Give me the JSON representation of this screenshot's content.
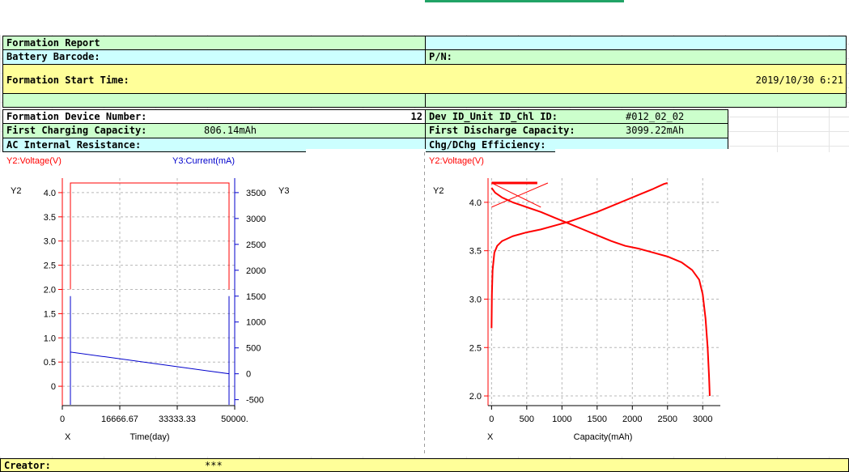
{
  "report": {
    "title": "Formation Report",
    "battery_barcode_label": "Battery Barcode:",
    "pn_label": "P/N:",
    "start_time_label": "Formation Start Time:",
    "start_time_value": "2019/10/30 6:21",
    "device_number_label": "Formation Device Number:",
    "device_number_value": "12",
    "dev_id_label": "Dev ID_Unit ID_Chl ID:",
    "dev_id_value": "#012_02_02",
    "first_charge_label": "First Charging Capacity:",
    "first_charge_value": "806.14mAh",
    "first_discharge_label": "First Discharge Capacity:",
    "first_discharge_value": "3099.22mAh",
    "ac_resistance_label": "AC Internal Resistance:",
    "efficiency_label": "Chg/DChg Efficiency:",
    "creator_label": "Creator:",
    "creator_value": "***"
  },
  "colors": {
    "voltage": "#ff0000",
    "current": "#0000cc",
    "cell_green": "#ccffcc",
    "cell_cyan": "#ccffff",
    "cell_yellow": "#ffff99"
  },
  "chart_data": [
    {
      "type": "line",
      "legend_left": "Y2:Voltage(V)",
      "legend_right": "Y3:Current(mA)",
      "y_axis_name": "Y2",
      "y2_axis_name": "Y3",
      "x_axis_name": "X",
      "xlabel": "Time(day)",
      "xlim": [
        0,
        50000
      ],
      "x_ticks": [
        "0",
        "16666.67",
        "33333.33",
        "50000."
      ],
      "x_tick_values": [
        0,
        16666.67,
        33333.33,
        50000
      ],
      "ylim": [
        -0.4,
        4.3
      ],
      "y_ticks": [
        0,
        0.5,
        1.0,
        1.5,
        2.0,
        2.5,
        3.0,
        3.5,
        4.0
      ],
      "y_tick_labels": [
        "0",
        "0.5",
        "1.0",
        "1.5",
        "2.0",
        "2.5",
        "3.0",
        "3.5",
        "4.0"
      ],
      "y2lim": [
        -615,
        3780
      ],
      "y2_ticks": [
        -500,
        0,
        500,
        1000,
        1500,
        2000,
        2500,
        3000,
        3500
      ],
      "y2_tick_labels": [
        "-500",
        "0",
        "500",
        "1000",
        "1500",
        "2000",
        "2500",
        "3000",
        "3500"
      ],
      "grid": true,
      "series": [
        {
          "axis": "y",
          "color": "#ff0000",
          "x": [
            0,
            0,
            0,
            50000,
            50000,
            50000
          ],
          "y": [
            2.0,
            4.2,
            4.2,
            4.2,
            4.2,
            2.0
          ]
        },
        {
          "axis": "y2",
          "color": "#0000cc",
          "x": [
            0,
            0,
            0,
            50000,
            50000,
            50000
          ],
          "y": [
            -600,
            1500,
            420,
            0,
            1500,
            -600
          ]
        }
      ]
    },
    {
      "type": "line",
      "legend_left": "Y2:Voltage(V)",
      "y_axis_name": "Y2",
      "x_axis_name": "X",
      "xlabel": "Capacity(mAh)",
      "xlim": [
        -50,
        3250
      ],
      "x_ticks": [
        0,
        500,
        1000,
        1500,
        2000,
        2500,
        3000
      ],
      "x_tick_labels": [
        "0",
        "500",
        "1000",
        "1500",
        "2000",
        "2500",
        "3000"
      ],
      "ylim": [
        1.9,
        4.25
      ],
      "y_ticks": [
        2.0,
        2.5,
        3.0,
        3.5,
        4.0
      ],
      "y_tick_labels": [
        "2.0",
        "2.5",
        "3.0",
        "3.5",
        "4.0"
      ],
      "grid": true,
      "series": [
        {
          "name_key": "charge",
          "color": "#ff0000",
          "width": 2,
          "x": [
            0,
            5,
            15,
            40,
            80,
            150,
            300,
            500,
            700,
            900,
            1100,
            1300,
            1500,
            1700,
            1900,
            2100,
            2300,
            2450,
            2500
          ],
          "y": [
            2.7,
            3.05,
            3.3,
            3.48,
            3.55,
            3.6,
            3.65,
            3.69,
            3.72,
            3.76,
            3.8,
            3.85,
            3.9,
            3.96,
            4.02,
            4.08,
            4.14,
            4.19,
            4.2
          ]
        },
        {
          "name_key": "discharge",
          "color": "#ff0000",
          "width": 2,
          "x": [
            0,
            50,
            150,
            300,
            500,
            700,
            900,
            1100,
            1300,
            1500,
            1700,
            1900,
            2100,
            2300,
            2500,
            2700,
            2850,
            2950,
            3000,
            3040,
            3070,
            3090,
            3100
          ],
          "y": [
            4.15,
            4.1,
            4.05,
            4.0,
            3.95,
            3.9,
            3.84,
            3.78,
            3.72,
            3.66,
            3.6,
            3.55,
            3.52,
            3.48,
            3.44,
            3.38,
            3.3,
            3.2,
            3.05,
            2.8,
            2.5,
            2.2,
            2.0
          ]
        },
        {
          "name_key": "cv-plateau",
          "color": "#ff0000",
          "width": 3,
          "x": [
            0,
            650
          ],
          "y": [
            4.2,
            4.2
          ]
        },
        {
          "name_key": "rest-1",
          "color": "#ff0000",
          "width": 1,
          "x": [
            0,
            800
          ],
          "y": [
            3.95,
            4.2
          ]
        },
        {
          "name_key": "rest-2",
          "color": "#ff0000",
          "width": 1,
          "x": [
            0,
            700
          ],
          "y": [
            4.2,
            3.95
          ]
        }
      ]
    }
  ]
}
